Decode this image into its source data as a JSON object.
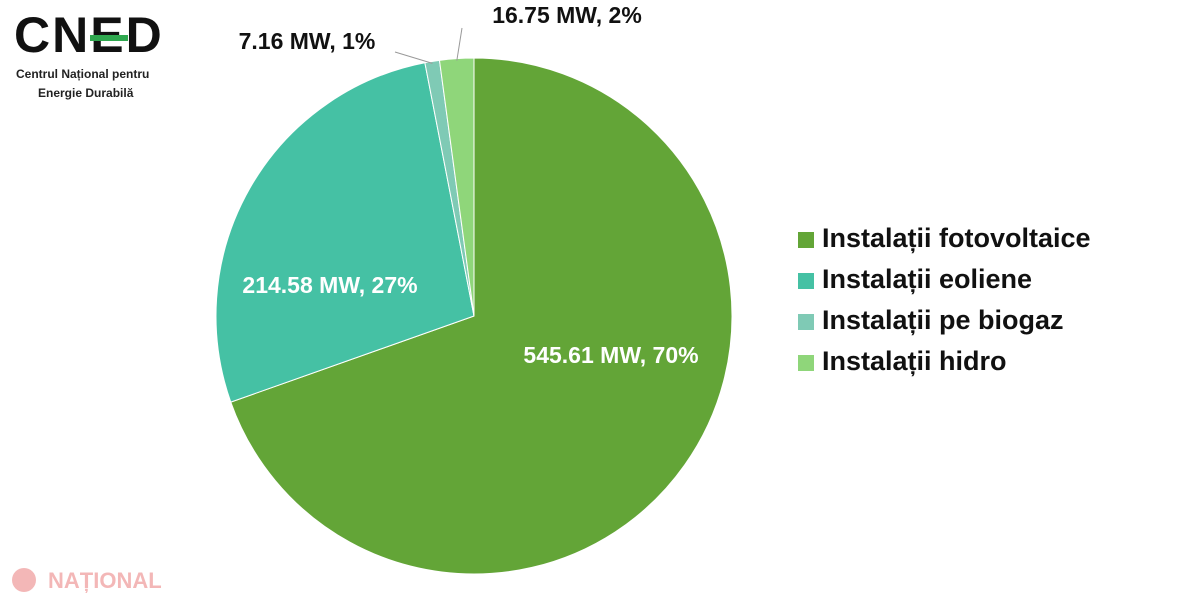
{
  "logo": {
    "name": "CNED",
    "line1": "Centrul Național pentru",
    "line2": "Energie Durabilă"
  },
  "watermark": "NAȚIONAL",
  "chart_data": {
    "type": "pie",
    "categories": [
      "Instalații fotovoltaice",
      "Instalații eoliene",
      "Instalații pe biogaz",
      "Instalații hidro"
    ],
    "values": [
      545.61,
      214.58,
      7.16,
      16.75
    ],
    "value_labels": [
      "545.61 MW, 70%",
      "214.58 MW, 27%",
      "7.16 MW, 1%",
      "16.75 MW, 2%"
    ],
    "colors": [
      "#63a537",
      "#45c1a4",
      "#7fcab5",
      "#8fd67a"
    ],
    "legend": "right"
  }
}
